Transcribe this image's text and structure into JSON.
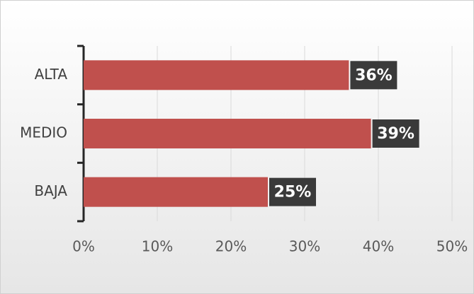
{
  "chart_data": {
    "type": "barh",
    "categories": [
      "ALTA",
      "MEDIO",
      "BAJA"
    ],
    "values": [
      36,
      39,
      25
    ],
    "value_labels": [
      "36%",
      "39%",
      "25%"
    ],
    "color": "#c0504d",
    "xlim": [
      0,
      50
    ],
    "xticks": [
      {
        "value": 0,
        "label": "0%"
      },
      {
        "value": 10,
        "label": "10%"
      },
      {
        "value": 20,
        "label": "20%"
      },
      {
        "value": 30,
        "label": "30%"
      },
      {
        "value": 40,
        "label": "40%"
      },
      {
        "value": 50,
        "label": "50%"
      }
    ],
    "grid": true
  }
}
